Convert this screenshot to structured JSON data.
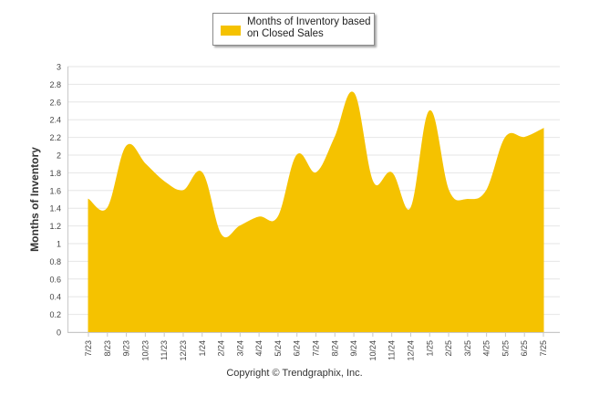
{
  "chart_data": {
    "type": "area",
    "title": "",
    "xlabel": "",
    "ylabel": "Months of Inventory",
    "ylim": [
      0,
      3
    ],
    "yticks": [
      "0",
      "0.2",
      "0.4",
      "0.6",
      "0.8",
      "1",
      "1.2",
      "1.4",
      "1.6",
      "1.8",
      "2",
      "2.2",
      "2.4",
      "2.6",
      "2.8",
      "3"
    ],
    "grid": true,
    "legend_position": "top-center",
    "categories": [
      "7/23",
      "8/23",
      "9/23",
      "10/23",
      "11/23",
      "12/23",
      "1/24",
      "2/24",
      "3/24",
      "4/24",
      "5/24",
      "6/24",
      "7/24",
      "8/24",
      "9/24",
      "10/24",
      "11/24",
      "12/24",
      "1/25",
      "2/25",
      "3/25",
      "4/25",
      "5/25",
      "6/25",
      "7/25"
    ],
    "series": [
      {
        "name": "Months of Inventory based on Closed Sales",
        "color": "#f5c200",
        "values": [
          1.5,
          1.4,
          2.1,
          1.9,
          1.7,
          1.6,
          1.8,
          1.1,
          1.2,
          1.3,
          1.3,
          2.0,
          1.8,
          2.2,
          2.7,
          1.7,
          1.8,
          1.4,
          2.5,
          1.6,
          1.5,
          1.6,
          2.2,
          2.2,
          2.3
        ]
      }
    ]
  },
  "legend": {
    "label": "Months of Inventory based on Closed Sales"
  },
  "footer": {
    "copyright": "Copyright © Trendgraphix, Inc."
  }
}
